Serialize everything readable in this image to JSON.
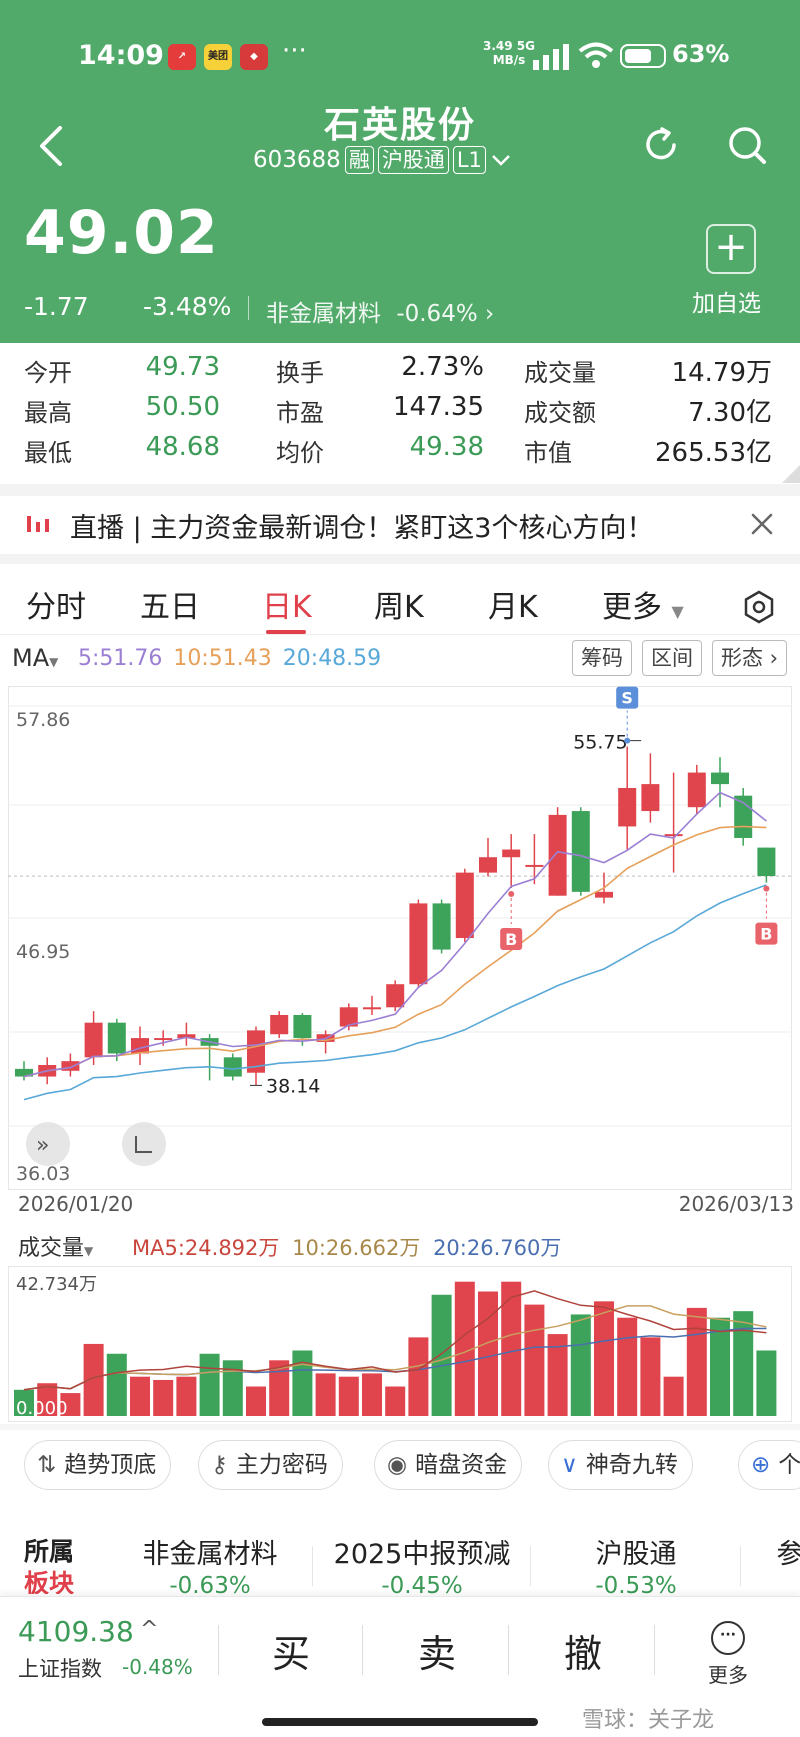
{
  "status_bar": {
    "time": "14:09",
    "app_icons": [
      "chart-app-icon",
      "meituan-icon",
      "shop-app-icon"
    ],
    "app_icon_labels": [
      "",
      "美团",
      ""
    ],
    "more": "···",
    "net_speed": "3.49",
    "net_unit": "MB/s",
    "net_type": "5G",
    "battery": "63%"
  },
  "header": {
    "stock_name": "石英股份",
    "stock_code": "603688",
    "tag_margin": "融",
    "tag_connect": "沪股通",
    "tag_level": "L1",
    "price": "49.02",
    "change": "-1.77",
    "change_pct": "-3.48%",
    "sector": "非金属材料",
    "sector_pct": "-0.64%",
    "add_watch": "加自选"
  },
  "stats": [
    {
      "label": "今开",
      "value": "49.73",
      "color": "green"
    },
    {
      "label": "换手",
      "value": "2.73%",
      "color": "dark"
    },
    {
      "label": "成交量",
      "value": "14.79万",
      "color": "dark"
    },
    {
      "label": "最高",
      "value": "50.50",
      "color": "green"
    },
    {
      "label": "市盈",
      "value": "147.35",
      "color": "dark"
    },
    {
      "label": "成交额",
      "value": "7.30亿",
      "color": "dark"
    },
    {
      "label": "最低",
      "value": "48.68",
      "color": "green"
    },
    {
      "label": "均价",
      "value": "49.38",
      "color": "green"
    },
    {
      "label": "市值",
      "value": "265.53亿",
      "color": "dark"
    }
  ],
  "live_banner": {
    "text": "直播 | 主力资金最新调仓！紧盯这3个核心方向！"
  },
  "tabs": [
    "分时",
    "五日",
    "日K",
    "周K",
    "月K",
    "更多"
  ],
  "active_tab": "日K",
  "ma": {
    "selector": "MA",
    "ma5": "5:51.76",
    "ma10": "10:51.43",
    "ma20": "20:48.59",
    "colors": {
      "ma5": "#9b7fd4",
      "ma10": "#e6a05a",
      "ma20": "#58a8d8"
    }
  },
  "chart_buttons": [
    "筹码",
    "区间",
    "形态"
  ],
  "chart_labels": {
    "y_top": "57.86",
    "y_mid": "46.95",
    "y_bottom": "36.03",
    "high_label": "55.75",
    "low_label": "38.14",
    "date_start": "2026/01/20",
    "date_end": "2026/03/13",
    "buy_marker": "B",
    "sell_marker": "S"
  },
  "volume": {
    "selector": "成交量",
    "ma5": "MA5:24.892万",
    "ma10": "10:26.662万",
    "ma20": "20:26.760万",
    "top_label": "42.734万",
    "bottom_label": "0.000"
  },
  "pills": [
    "趋势顶底",
    "主力密码",
    "暗盘资金",
    "神奇九转",
    "个"
  ],
  "sectors": {
    "title_line1": "所属",
    "title_line2": "板块",
    "items": [
      {
        "name": "非金属材料",
        "pct": "-0.63%"
      },
      {
        "name": "2025中报预减",
        "pct": "-0.45%"
      },
      {
        "name": "沪股通",
        "pct": "-0.53%"
      },
      {
        "name": "参",
        "pct": ""
      }
    ]
  },
  "bottom": {
    "index_value": "4109.38",
    "index_arrow": "^",
    "index_name": "上证指数",
    "index_pct": "-0.48%",
    "buy": "买",
    "sell": "卖",
    "cancel": "撤",
    "more": "更多"
  },
  "watermark": "雪球：关子龙",
  "chart_data": {
    "type": "candlestick",
    "title": "",
    "x_range": [
      "2026/01/20",
      "2026/03/13"
    ],
    "ylim": [
      36.03,
      57.86
    ],
    "candles": [
      {
        "o": 39.0,
        "c": 38.6,
        "h": 39.4,
        "l": 38.4
      },
      {
        "o": 38.6,
        "c": 39.2,
        "h": 39.6,
        "l": 38.2
      },
      {
        "o": 38.9,
        "c": 39.4,
        "h": 39.8,
        "l": 38.6
      },
      {
        "o": 39.6,
        "c": 41.4,
        "h": 42.0,
        "l": 39.2
      },
      {
        "o": 41.4,
        "c": 39.8,
        "h": 41.6,
        "l": 39.4
      },
      {
        "o": 39.8,
        "c": 40.6,
        "h": 41.2,
        "l": 39.2
      },
      {
        "o": 40.6,
        "c": 40.6,
        "h": 41.0,
        "l": 40.2
      },
      {
        "o": 40.6,
        "c": 40.8,
        "h": 41.4,
        "l": 40.2
      },
      {
        "o": 40.6,
        "c": 40.2,
        "h": 40.8,
        "l": 38.4
      },
      {
        "o": 39.6,
        "c": 38.6,
        "h": 39.8,
        "l": 38.4
      },
      {
        "o": 38.8,
        "c": 41.0,
        "h": 41.2,
        "l": 38.14
      },
      {
        "o": 40.8,
        "c": 41.8,
        "h": 42.0,
        "l": 40.6
      },
      {
        "o": 41.8,
        "c": 40.6,
        "h": 41.9,
        "l": 40.2
      },
      {
        "o": 40.4,
        "c": 40.8,
        "h": 41.0,
        "l": 39.8
      },
      {
        "o": 41.2,
        "c": 42.2,
        "h": 42.4,
        "l": 41.0
      },
      {
        "o": 42.2,
        "c": 42.2,
        "h": 42.8,
        "l": 41.8
      },
      {
        "o": 42.2,
        "c": 43.4,
        "h": 43.6,
        "l": 42.0
      },
      {
        "o": 43.4,
        "c": 47.6,
        "h": 47.8,
        "l": 43.2
      },
      {
        "o": 47.6,
        "c": 45.2,
        "h": 47.8,
        "l": 45.0
      },
      {
        "o": 45.8,
        "c": 49.2,
        "h": 49.4,
        "l": 45.6
      },
      {
        "o": 49.2,
        "c": 50.0,
        "h": 51.0,
        "l": 49.0
      },
      {
        "o": 50.0,
        "c": 50.4,
        "h": 51.2,
        "l": 48.4
      },
      {
        "o": 49.6,
        "c": 49.6,
        "h": 51.2,
        "l": 48.6
      },
      {
        "o": 48.0,
        "c": 52.2,
        "h": 52.6,
        "l": 48.0
      },
      {
        "o": 52.4,
        "c": 48.2,
        "h": 52.6,
        "l": 48.0
      },
      {
        "o": 47.9,
        "c": 48.2,
        "h": 49.2,
        "l": 47.6
      },
      {
        "o": 51.6,
        "c": 53.6,
        "h": 55.75,
        "l": 50.4
      },
      {
        "o": 52.4,
        "c": 53.8,
        "h": 55.4,
        "l": 51.8
      },
      {
        "o": 51.2,
        "c": 51.2,
        "h": 54.4,
        "l": 49.2
      },
      {
        "o": 52.6,
        "c": 54.4,
        "h": 54.8,
        "l": 52.2
      },
      {
        "o": 54.4,
        "c": 53.8,
        "h": 55.2,
        "l": 52.6
      },
      {
        "o": 53.2,
        "c": 51.0,
        "h": 53.6,
        "l": 50.6
      },
      {
        "o": 50.5,
        "c": 49.02,
        "h": 50.5,
        "l": 48.68
      }
    ],
    "volume": [
      8,
      10,
      7,
      22,
      19,
      12,
      11,
      12,
      19,
      17,
      9,
      17,
      20,
      13,
      12,
      13,
      9,
      24,
      37,
      41,
      38,
      41,
      34,
      25,
      31,
      35,
      30,
      24,
      12,
      33,
      30,
      32,
      20
    ],
    "volume_ylim": [
      0,
      42.734
    ]
  }
}
